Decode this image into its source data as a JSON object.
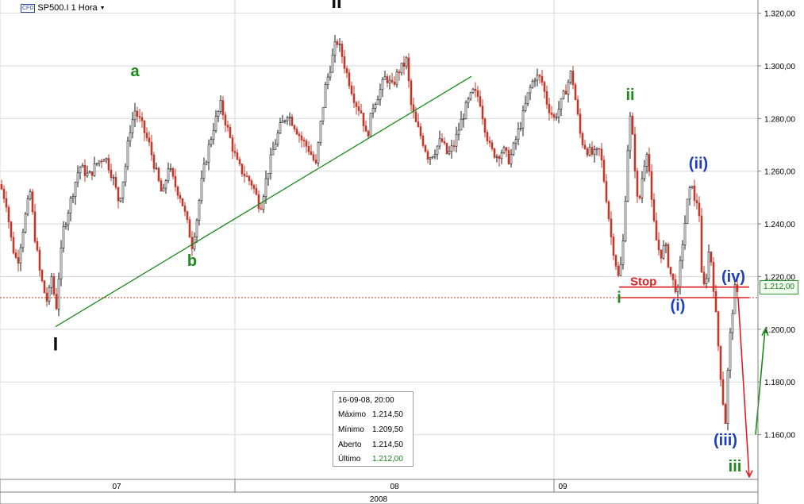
{
  "header": {
    "cfd_badge": "CFD",
    "symbol": "SP500.I 1 Hora",
    "dropdown_icon": "caret-down-icon"
  },
  "info_panel": {
    "datetime": "16-09-08, 20:00",
    "rows": [
      {
        "label": "Máximo",
        "value": "1.214,50"
      },
      {
        "label": "Mínimo",
        "value": "1.209,50"
      },
      {
        "label": "Aberto",
        "value": "1.214,50"
      },
      {
        "label": "Último",
        "value": "1.212,00"
      }
    ]
  },
  "last_price_label": "1.212,00",
  "chart_data": {
    "type": "candlestick",
    "title": "SP500.I 1 Hora",
    "y_ticks": [
      "1.320,00",
      "1.300,00",
      "1.280,00",
      "1.260,00",
      "1.240,00",
      "1.220,00",
      "1.200,00",
      "1.180,00",
      "1.160,00"
    ],
    "y_tick_values": [
      1320,
      1300,
      1280,
      1260,
      1240,
      1220,
      1200,
      1180,
      1160
    ],
    "x_ticks": [
      "07",
      "08",
      "09"
    ],
    "x_year_label": "2008",
    "ylim": [
      1143,
      1325
    ],
    "grid": true,
    "colors": {
      "up": "#1a1a1a",
      "down": "#c0392b",
      "trendline": "#1a8a1a",
      "stop": "#e02020",
      "arrow_down": "#e02020",
      "arrow_up": "#1a8a1a",
      "wave_green": "#1a8a1a",
      "wave_blue": "#1f3fc0",
      "wave_black": "#111111"
    },
    "price_path": [
      [
        0,
        1255
      ],
      [
        8,
        1248
      ],
      [
        15,
        1232
      ],
      [
        22,
        1225
      ],
      [
        30,
        1240
      ],
      [
        38,
        1252
      ],
      [
        44,
        1235
      ],
      [
        50,
        1222
      ],
      [
        55,
        1215
      ],
      [
        60,
        1210
      ],
      [
        66,
        1222
      ],
      [
        70,
        1205
      ],
      [
        74,
        1220
      ],
      [
        80,
        1238
      ],
      [
        90,
        1250
      ],
      [
        100,
        1262
      ],
      [
        112,
        1258
      ],
      [
        122,
        1263
      ],
      [
        132,
        1266
      ],
      [
        142,
        1258
      ],
      [
        150,
        1248
      ],
      [
        158,
        1262
      ],
      [
        163,
        1275
      ],
      [
        170,
        1283
      ],
      [
        178,
        1278
      ],
      [
        188,
        1270
      ],
      [
        198,
        1258
      ],
      [
        205,
        1250
      ],
      [
        212,
        1262
      ],
      [
        220,
        1255
      ],
      [
        228,
        1250
      ],
      [
        236,
        1240
      ],
      [
        242,
        1232
      ],
      [
        248,
        1242
      ],
      [
        255,
        1258
      ],
      [
        262,
        1268
      ],
      [
        270,
        1278
      ],
      [
        278,
        1285
      ],
      [
        285,
        1278
      ],
      [
        292,
        1270
      ],
      [
        300,
        1262
      ],
      [
        310,
        1258
      ],
      [
        318,
        1255
      ],
      [
        328,
        1246
      ],
      [
        336,
        1258
      ],
      [
        344,
        1268
      ],
      [
        352,
        1276
      ],
      [
        362,
        1282
      ],
      [
        370,
        1278
      ],
      [
        380,
        1272
      ],
      [
        390,
        1268
      ],
      [
        398,
        1262
      ],
      [
        404,
        1278
      ],
      [
        410,
        1292
      ],
      [
        418,
        1302
      ],
      [
        424,
        1310
      ],
      [
        430,
        1305
      ],
      [
        436,
        1298
      ],
      [
        442,
        1292
      ],
      [
        448,
        1286
      ],
      [
        456,
        1282
      ],
      [
        462,
        1272
      ],
      [
        470,
        1285
      ],
      [
        478,
        1290
      ],
      [
        486,
        1296
      ],
      [
        494,
        1292
      ],
      [
        502,
        1298
      ],
      [
        508,
        1300
      ],
      [
        512,
        1302
      ],
      [
        518,
        1285
      ],
      [
        524,
        1278
      ],
      [
        532,
        1272
      ],
      [
        540,
        1265
      ],
      [
        548,
        1268
      ],
      [
        556,
        1272
      ],
      [
        564,
        1266
      ],
      [
        572,
        1270
      ],
      [
        580,
        1278
      ],
      [
        588,
        1285
      ],
      [
        596,
        1290
      ],
      [
        604,
        1288
      ],
      [
        610,
        1278
      ],
      [
        618,
        1268
      ],
      [
        626,
        1266
      ],
      [
        634,
        1268
      ],
      [
        642,
        1264
      ],
      [
        650,
        1272
      ],
      [
        658,
        1280
      ],
      [
        666,
        1290
      ],
      [
        674,
        1296
      ],
      [
        682,
        1295
      ],
      [
        690,
        1285
      ],
      [
        698,
        1280
      ],
      [
        706,
        1285
      ],
      [
        714,
        1292
      ],
      [
        720,
        1298
      ],
      [
        726,
        1285
      ],
      [
        732,
        1272
      ],
      [
        740,
        1268
      ],
      [
        748,
        1266
      ],
      [
        756,
        1268
      ],
      [
        764,
        1250
      ],
      [
        770,
        1235
      ],
      [
        776,
        1225
      ],
      [
        780,
        1218
      ],
      [
        786,
        1236
      ],
      [
        790,
        1265
      ],
      [
        794,
        1280
      ],
      [
        798,
        1270
      ],
      [
        804,
        1245
      ],
      [
        810,
        1260
      ],
      [
        816,
        1270
      ],
      [
        820,
        1250
      ],
      [
        826,
        1235
      ],
      [
        832,
        1228
      ],
      [
        838,
        1232
      ],
      [
        844,
        1222
      ],
      [
        848,
        1218
      ],
      [
        854,
        1214
      ],
      [
        858,
        1228
      ],
      [
        862,
        1238
      ],
      [
        866,
        1248
      ],
      [
        872,
        1256
      ],
      [
        876,
        1245
      ],
      [
        880,
        1252
      ],
      [
        884,
        1220
      ],
      [
        888,
        1215
      ],
      [
        894,
        1232
      ],
      [
        898,
        1220
      ],
      [
        902,
        1205
      ],
      [
        906,
        1190
      ],
      [
        910,
        1175
      ],
      [
        914,
        1165
      ],
      [
        918,
        1190
      ],
      [
        922,
        1205
      ],
      [
        926,
        1215
      ],
      [
        930,
        1212
      ]
    ],
    "annotations": [
      {
        "text": "I",
        "color": "black",
        "x_index": 70,
        "y": 1192
      },
      {
        "text": "II",
        "color": "black",
        "x_index": 424,
        "y": 1322
      },
      {
        "text": "a",
        "color": "green",
        "x_index": 170,
        "y": 1296
      },
      {
        "text": "b",
        "color": "green",
        "x_index": 242,
        "y": 1224
      },
      {
        "text": "i",
        "color": "green",
        "x_index": 780,
        "y": 1210
      },
      {
        "text": "ii",
        "color": "green",
        "x_index": 794,
        "y": 1287
      },
      {
        "text": "iii",
        "color": "green",
        "x_index": 926,
        "y": 1146
      },
      {
        "text": "(i)",
        "color": "blue",
        "x_index": 854,
        "y": 1207
      },
      {
        "text": "(ii)",
        "color": "blue",
        "x_index": 880,
        "y": 1261
      },
      {
        "text": "(iii)",
        "color": "blue",
        "x_index": 914,
        "y": 1156
      },
      {
        "text": "(iv)",
        "color": "blue",
        "x_index": 924,
        "y": 1218
      }
    ],
    "trendline": {
      "x0": 70,
      "y0": 1201,
      "x1": 594,
      "y1": 1296
    },
    "stop": {
      "label": "Stop",
      "value": 1216,
      "x_from": 780,
      "x_to": 944
    },
    "current_price_line": {
      "value": 1212
    },
    "forecast_down": {
      "x0": 930,
      "y0": 1212,
      "x1": 944,
      "y1": 1144
    },
    "forecast_up": {
      "x0": 952,
      "y0": 1160,
      "x1": 964,
      "y1": 1200
    }
  }
}
